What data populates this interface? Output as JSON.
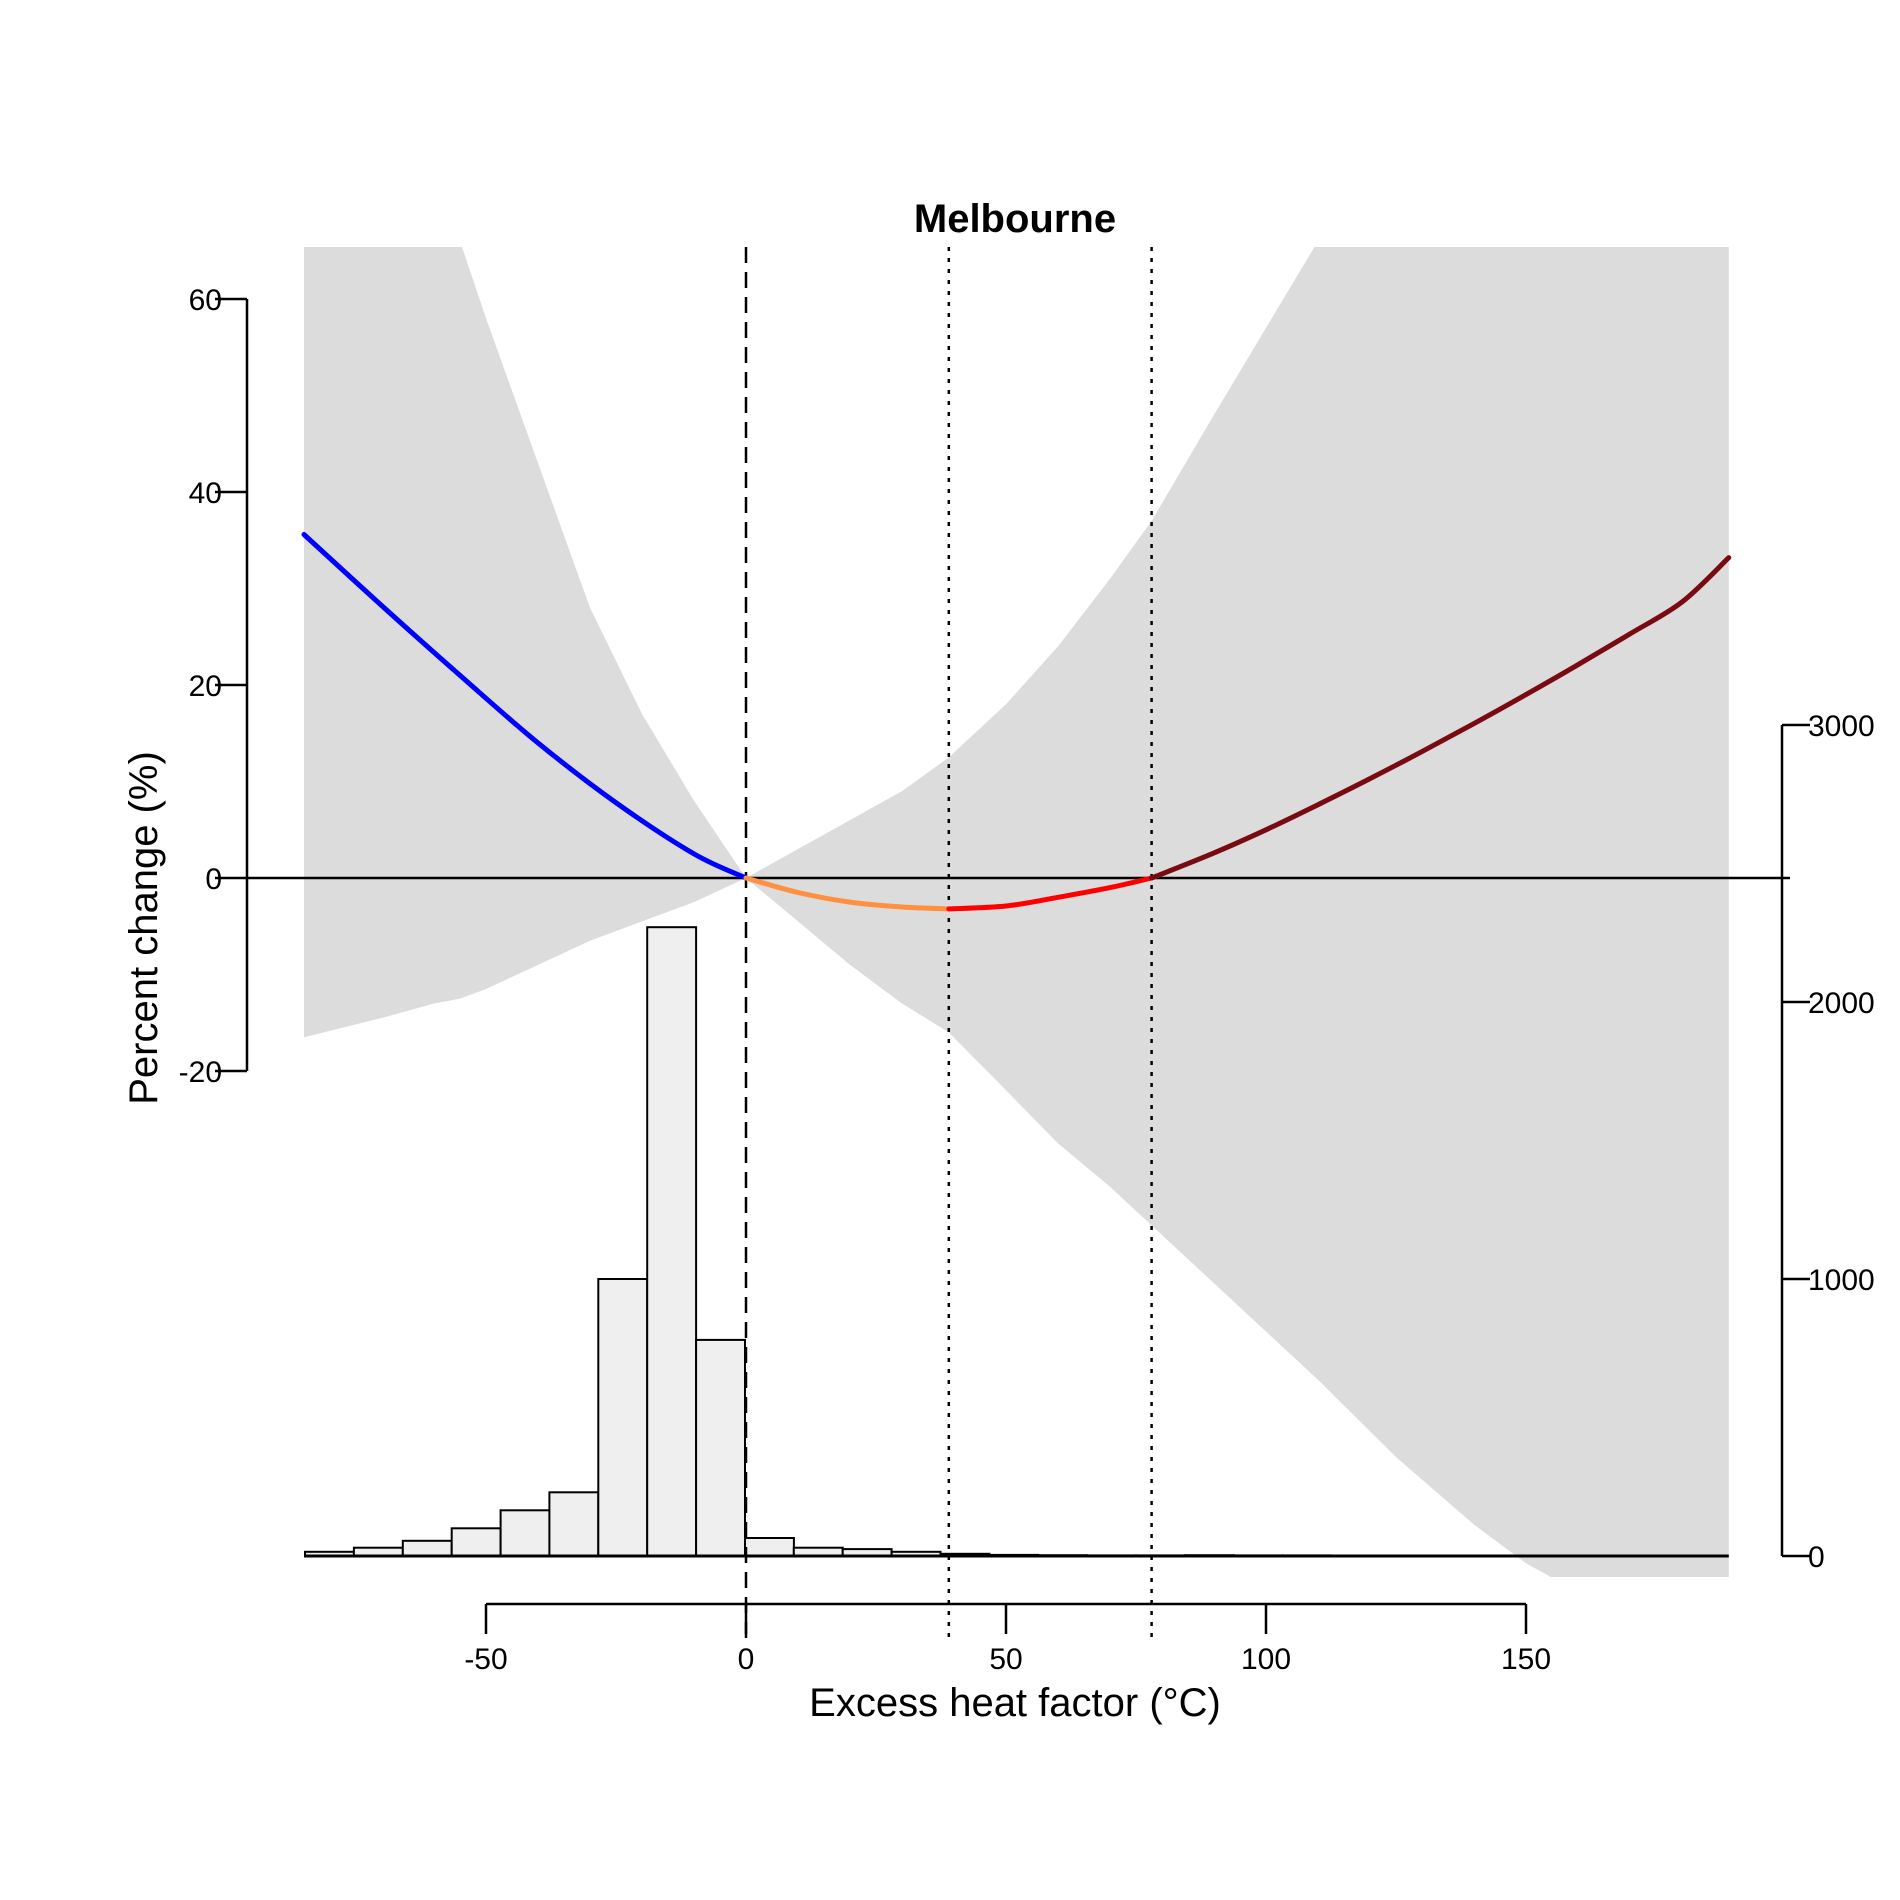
{
  "chart_data": {
    "type": "line",
    "title": "Melbourne",
    "xlabel": "Excess heat factor (°C)",
    "ylabel": "Percent change (%)",
    "xlim": [
      -85,
      189
    ],
    "ylim": [
      -20,
      60
    ],
    "x_ticks": [
      -50,
      0,
      50,
      100,
      150
    ],
    "x_tick_labels": [
      "-50",
      "0",
      "50",
      "100",
      "150"
    ],
    "y_ticks": [
      -20,
      0,
      20,
      40,
      60
    ],
    "y_tick_labels": [
      "-20",
      "0",
      "20",
      "40",
      "60"
    ],
    "y2_lim": [
      0,
      3000
    ],
    "y2_ticks": [
      0,
      1000,
      2000,
      3000
    ],
    "y2_tick_labels": [
      "0",
      "1000",
      "2000",
      "3000"
    ],
    "reference_lines": {
      "zero_line_y": 0,
      "dashed_x": [
        0
      ],
      "dotted_x": [
        39,
        78
      ]
    },
    "series": [
      {
        "color": "#0000ff",
        "x": [
          -85,
          -70,
          -55,
          -40,
          -25,
          -10,
          0
        ],
        "values": [
          35.6,
          28.2,
          21.0,
          14.0,
          7.8,
          2.5,
          0
        ]
      },
      {
        "color": "#ff9040",
        "x": [
          0,
          10,
          20,
          30,
          39
        ],
        "values": [
          0,
          -1.5,
          -2.5,
          -3.0,
          -3.2
        ]
      },
      {
        "color": "#ff0000",
        "x": [
          39,
          50,
          60,
          70,
          78
        ],
        "values": [
          -3.2,
          -2.9,
          -2.0,
          -1.0,
          0
        ]
      },
      {
        "color": "#7a0a12",
        "x": [
          78,
          90,
          100,
          110,
          120,
          130,
          140,
          150,
          160,
          170,
          180,
          189
        ],
        "values": [
          0,
          2.6,
          5.0,
          7.6,
          10.3,
          13.1,
          16.0,
          19.0,
          22.1,
          25.3,
          28.6,
          33.2
        ]
      }
    ],
    "confidence_band": {
      "color": "#dcdcdc",
      "x": [
        -85,
        -70,
        -60,
        -55,
        -50,
        -40,
        -30,
        -20,
        -10,
        0,
        10,
        20,
        30,
        39,
        50,
        60,
        70,
        78,
        90,
        100,
        110,
        125,
        140,
        150,
        160,
        175,
        189
      ],
      "upper": [
        70,
        70,
        70,
        66,
        58,
        43,
        28,
        17,
        8,
        0,
        3,
        6,
        9,
        12.5,
        18,
        24,
        31,
        37,
        48,
        57,
        66,
        70,
        70,
        70,
        70,
        70,
        70
      ],
      "lower": [
        -16.5,
        -14.5,
        -13,
        -12.5,
        -11.5,
        -9,
        -6.5,
        -4.5,
        -2.5,
        0,
        -4.5,
        -9,
        -13,
        -16,
        -22,
        -27.5,
        -32,
        -36,
        -42,
        -47,
        -52,
        -60,
        -67,
        -71,
        -74,
        -78,
        -82
      ]
    },
    "histogram": {
      "color": "#efefef",
      "bin_width": 9.4,
      "bin_starts": [
        -84.8,
        -75.4,
        -66.0,
        -56.6,
        -47.2,
        -37.8,
        -28.4,
        -19.0,
        -9.6,
        -0.2,
        9.2,
        18.6,
        28.0,
        37.4,
        46.8,
        56.2,
        65.6,
        75.0,
        84.4,
        93.8,
        103.2,
        112.6,
        122.0,
        131.4,
        140.8,
        150.2,
        159.6,
        169.0,
        178.4
      ],
      "counts": [
        15,
        30,
        55,
        100,
        165,
        230,
        1000,
        2270,
        780,
        65,
        30,
        25,
        15,
        8,
        4,
        3,
        2,
        2,
        3,
        2,
        2,
        1,
        1,
        1,
        1,
        1,
        1,
        1,
        1
      ]
    }
  }
}
